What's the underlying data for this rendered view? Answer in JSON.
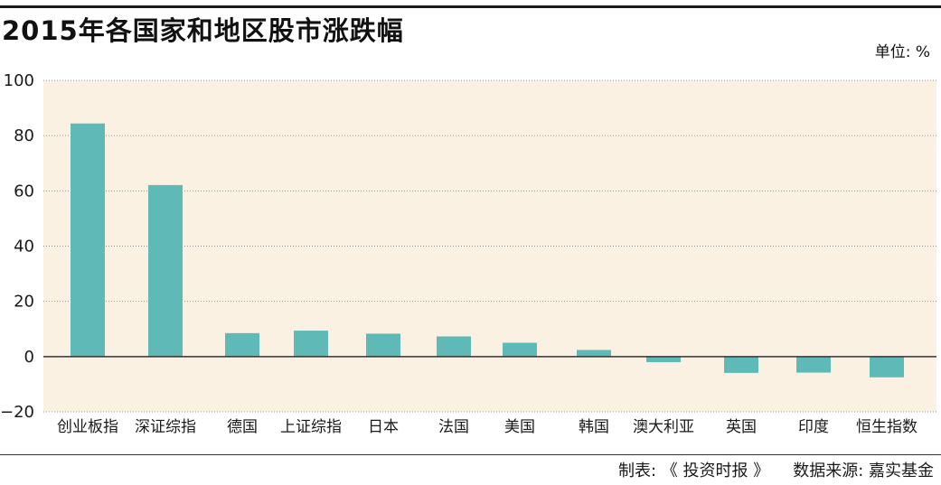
{
  "title": "2015年各国家和地区股市涨跌幅",
  "unit_label": "单位: %",
  "footer": {
    "producer": "制表: 《 投资时报 》",
    "source": "数据来源: 嘉实基金"
  },
  "colors": {
    "bar": "#5fb9b6",
    "plot_background": "#fbf1e2",
    "gridline": "#9a9a9a",
    "zero_line": "#333333"
  },
  "chart_data": {
    "type": "bar",
    "title": "2015年各国家和地区股市涨跌幅",
    "xlabel": "",
    "ylabel": "",
    "unit": "%",
    "categories": [
      "创业板指",
      "深证综指",
      "德国",
      "上证综指",
      "日本",
      "法国",
      "美国",
      "韩国",
      "澳大利亚",
      "英国",
      "印度",
      "恒生指数"
    ],
    "values": [
      84.4,
      62.1,
      8.5,
      9.4,
      8.3,
      7.3,
      5.0,
      2.4,
      -2.0,
      -5.9,
      -5.8,
      -7.5
    ],
    "ylim": [
      -20,
      100
    ],
    "yticks": [
      -20,
      0,
      20,
      40,
      60,
      80,
      100
    ],
    "ytick_labels": [
      "−20",
      "0",
      "20",
      "40",
      "60",
      "80",
      "100"
    ],
    "grid": true,
    "legend": "none"
  }
}
